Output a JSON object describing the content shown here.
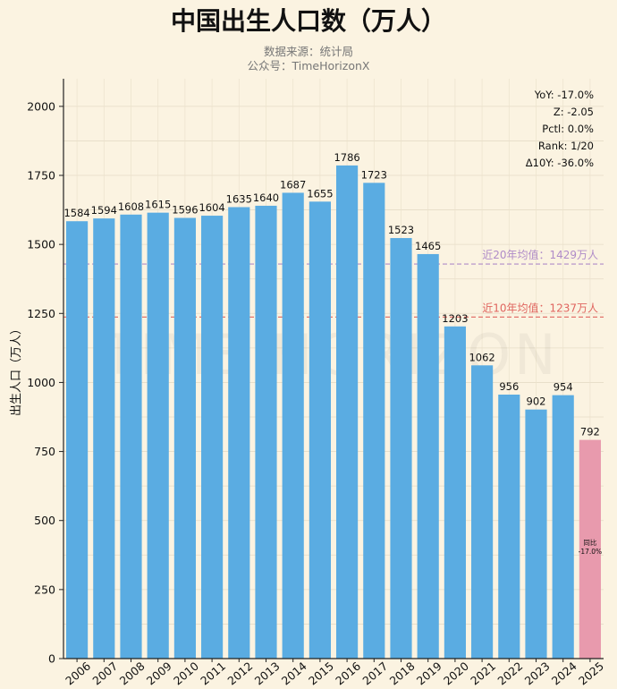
{
  "header": {
    "title": "中国出生人口数（万人）",
    "subtitle_line1": "数据来源：统计局",
    "subtitle_line2": "公众号：TimeHorizonX"
  },
  "watermark": "TIME HORIZON",
  "stats": [
    {
      "label": "YoY:",
      "value": "-17.0%"
    },
    {
      "label": "Z:",
      "value": "-2.05"
    },
    {
      "label": "Pctl:",
      "value": "0.0%"
    },
    {
      "label": "Rank:",
      "value": "1/20"
    },
    {
      "label": "Δ10Y:",
      "value": "-36.0%"
    }
  ],
  "reference_lines": [
    {
      "label": "近20年均值：1429万人",
      "value": 1429,
      "color": "#b08cc8"
    },
    {
      "label": "近10年均值：1237万人",
      "value": 1237,
      "color": "#e0655f"
    }
  ],
  "highlight_bar": {
    "line1": "同比",
    "line2": "-17.0%"
  },
  "colors": {
    "bar": "#5aace2",
    "highlight": "#e89aad",
    "background": "#fbf3e1"
  },
  "chart_data": {
    "type": "bar",
    "title": "中国出生人口数（万人）",
    "ylabel": "出生人口（万人）",
    "xlabel": "",
    "categories": [
      "2006",
      "2007",
      "2008",
      "2009",
      "2010",
      "2011",
      "2012",
      "2013",
      "2014",
      "2015",
      "2016",
      "2017",
      "2018",
      "2019",
      "2020",
      "2021",
      "2022",
      "2023",
      "2024",
      "2025"
    ],
    "values": [
      1584,
      1594,
      1608,
      1615,
      1596,
      1604,
      1635,
      1640,
      1687,
      1655,
      1786,
      1723,
      1523,
      1465,
      1203,
      1062,
      956,
      902,
      954,
      792
    ],
    "ylim": [
      0,
      2100
    ],
    "yticks": [
      0,
      250,
      500,
      750,
      1000,
      1250,
      1500,
      1750,
      2000
    ],
    "grid": true,
    "highlight_index": 19
  }
}
